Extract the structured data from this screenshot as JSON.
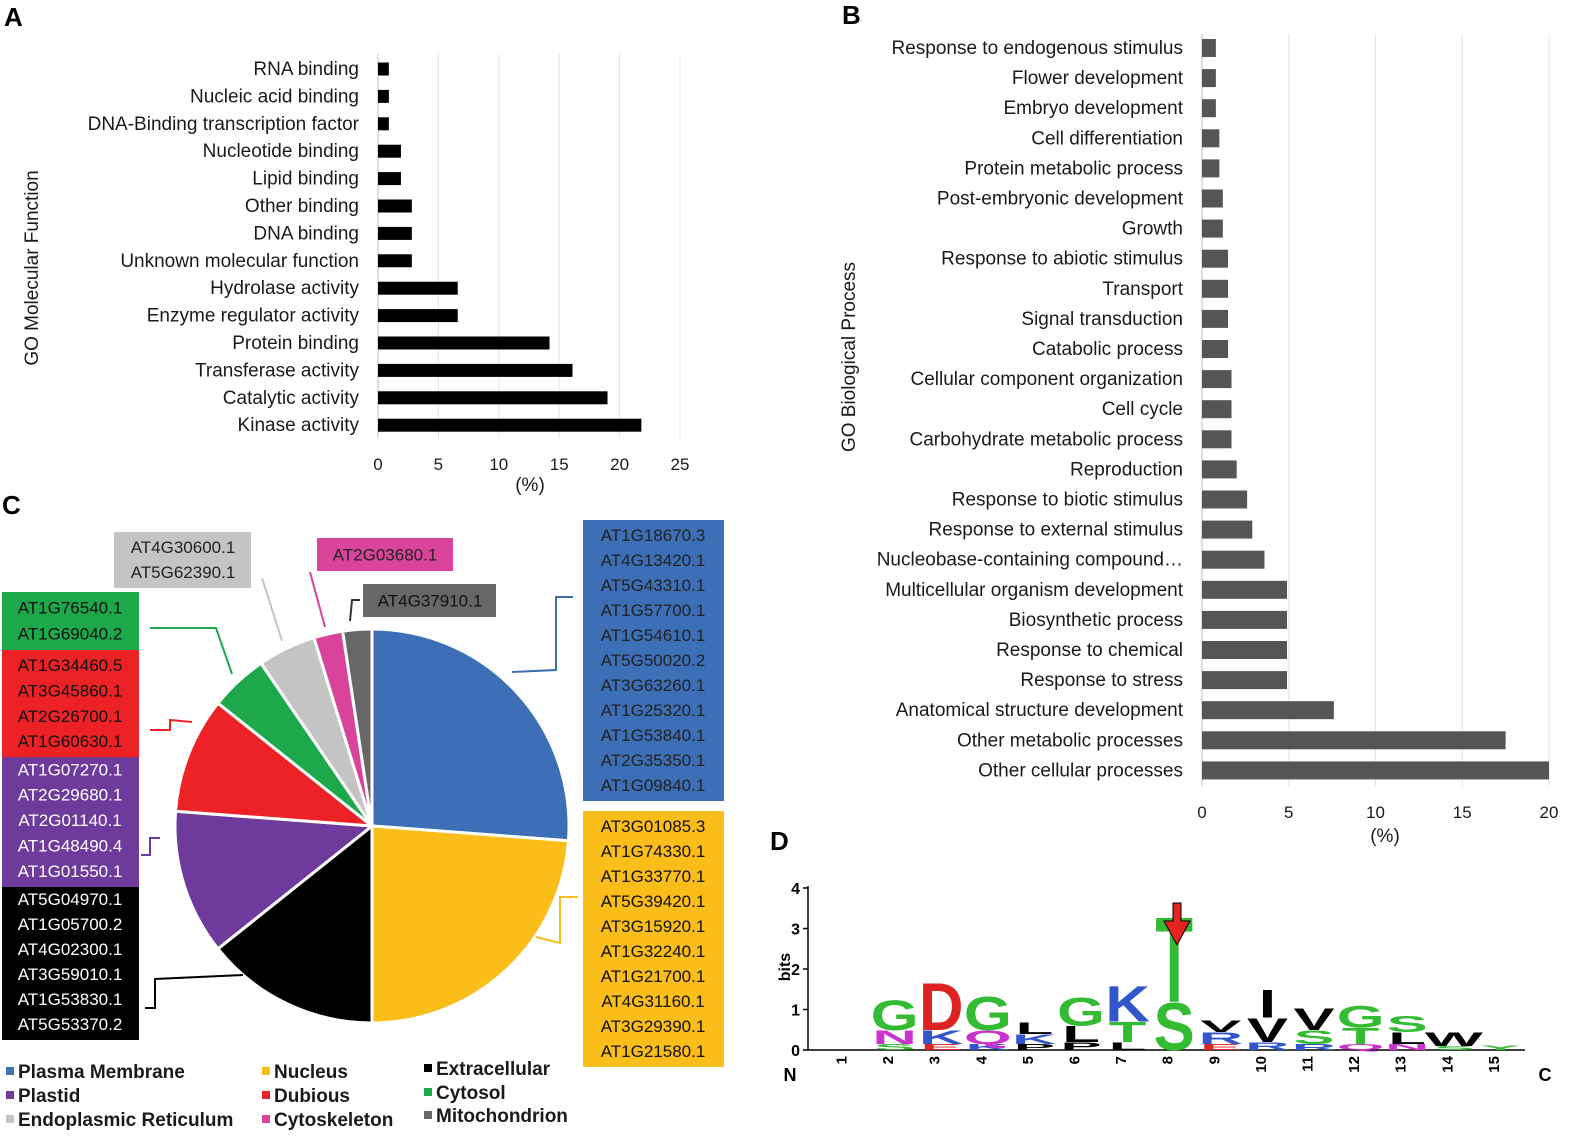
{
  "panels": {
    "a": "A",
    "b": "B",
    "c": "C",
    "d": "D"
  },
  "chart_data": [
    {
      "id": "A",
      "type": "bar",
      "orientation": "horizontal",
      "ylabel": "GO Molecular Function",
      "xlabel": "(%)",
      "xlim": [
        0,
        25
      ],
      "xticks": [
        0,
        5,
        10,
        15,
        20,
        25
      ],
      "bar_color": "#000000",
      "categories": [
        "RNA binding",
        "Nucleic acid binding",
        "DNA-Binding transcription factor",
        "Nucleotide binding",
        "Lipid binding",
        "Other binding",
        "DNA binding",
        "Unknown molecular function",
        "Hydrolase activity",
        "Enzyme regulator activity",
        "Protein binding",
        "Transferase activity",
        "Catalytic activity",
        "Kinase activity"
      ],
      "values": [
        0.9,
        0.9,
        0.9,
        1.9,
        1.9,
        2.8,
        2.8,
        2.8,
        6.6,
        6.6,
        14.2,
        16.1,
        19.0,
        21.8
      ]
    },
    {
      "id": "B",
      "type": "bar",
      "orientation": "horizontal",
      "ylabel": "GO Biological Process",
      "xlabel": "(%)",
      "xlim": [
        0,
        20
      ],
      "xticks": [
        0,
        5,
        10,
        15,
        20
      ],
      "bar_color": "#555555",
      "categories": [
        "Response to endogenous stimulus",
        "Flower development",
        "Embryo development",
        "Cell differentiation",
        "Protein metabolic process",
        "Post-embryonic development",
        "Growth",
        "Response to abiotic stimulus",
        "Transport",
        "Signal transduction",
        "Catabolic process",
        "Cellular component organization",
        "Cell cycle",
        "Carbohydrate metabolic process",
        "Reproduction",
        "Response to biotic stimulus",
        "Response to external stimulus",
        "Nucleobase-containing compound…",
        "Multicellular organism development",
        "Biosynthetic process",
        "Response to chemical",
        "Response to stress",
        "Anatomical structure development",
        "Other metabolic processes",
        "Other cellular processes"
      ],
      "values": [
        0.8,
        0.8,
        0.8,
        1.0,
        1.0,
        1.2,
        1.2,
        1.5,
        1.5,
        1.5,
        1.5,
        1.7,
        1.7,
        1.7,
        2.0,
        2.6,
        2.9,
        3.6,
        4.9,
        4.9,
        4.9,
        4.9,
        7.6,
        17.5,
        20.0
      ]
    },
    {
      "id": "C",
      "type": "pie",
      "slices": [
        {
          "name": "Plasma Membrane",
          "value": 11,
          "color": "#3d6fb6",
          "ids": [
            "AT1G18670.3",
            "AT4G13420.1",
            "AT5G43310.1",
            "AT1G57700.1",
            "AT1G54610.1",
            "AT5G50020.2",
            "AT3G63260.1",
            "AT1G25320.1",
            "AT1G53840.1",
            "AT2G35350.1",
            "AT1G09840.1"
          ]
        },
        {
          "name": "Nucleus",
          "value": 10,
          "color": "#fbbd1a",
          "ids": [
            "AT3G01085.3",
            "AT1G74330.1",
            "AT1G33770.1",
            "AT5G39420.1",
            "AT3G15920.1",
            "AT1G32240.1",
            "AT1G21700.1",
            "AT4G31160.1",
            "AT3G29390.1",
            "AT1G21580.1"
          ]
        },
        {
          "name": "Extracellular",
          "value": 6,
          "color": "#000000",
          "ids": [
            "AT5G04970.1",
            "AT1G05700.2",
            "AT4G02300.1",
            "AT3G59010.1",
            "AT1G53830.1",
            "AT5G53370.2"
          ]
        },
        {
          "name": "Plastid",
          "value": 5,
          "color": "#6e3b9c",
          "ids": [
            "AT1G07270.1",
            "AT2G29680.1",
            "AT2G01140.1",
            "AT1G48490.4",
            "AT1G01550.1"
          ]
        },
        {
          "name": "Dubious",
          "value": 4,
          "color": "#ec2227",
          "ids": [
            "AT1G34460.5",
            "AT3G45860.1",
            "AT2G26700.1",
            "AT1G60630.1"
          ]
        },
        {
          "name": "Cytosol",
          "value": 2,
          "color": "#1ea84c",
          "ids": [
            "AT1G76540.1",
            "AT1G69040.2"
          ]
        },
        {
          "name": "Endoplasmic Reticulum",
          "value": 2,
          "color": "#c4c4c4",
          "ids": [
            "AT4G30600.1",
            "AT5G62390.1"
          ]
        },
        {
          "name": "Cytoskeleton",
          "value": 1,
          "color": "#d9449a",
          "ids": [
            "AT2G03680.1"
          ]
        },
        {
          "name": "Mitochondrion",
          "value": 1,
          "color": "#676767",
          "ids": [
            "AT4G37910.1"
          ]
        }
      ],
      "legend": [
        [
          "Plasma Membrane",
          "Nucleus",
          "Extracellular"
        ],
        [
          "Plastid",
          "Dubious",
          "Cytosol"
        ],
        [
          "Endoplasmic Reticulum",
          "Cytoskeleton",
          "Mitochondrion"
        ]
      ]
    },
    {
      "id": "D",
      "type": "sequence-logo",
      "ylabel": "bits",
      "ylim": [
        0,
        4
      ],
      "yticks": [
        0,
        1,
        2,
        3,
        4
      ],
      "positions": [
        "1",
        "2",
        "3",
        "4",
        "5",
        "6",
        "7",
        "8",
        "9",
        "10",
        "11",
        "12",
        "13",
        "14",
        "15"
      ],
      "n_label": "N",
      "c_label": "C",
      "highlight_position": 8,
      "stacks": [
        {
          "pos": 1,
          "letters": []
        },
        {
          "pos": 2,
          "letters": [
            {
              "l": "G",
              "bits": 0.75,
              "color": "#33bb33"
            },
            {
              "l": "N",
              "bits": 0.35,
              "color": "#cc33cc"
            },
            {
              "l": "S",
              "bits": 0.15,
              "color": "#33bb33"
            }
          ]
        },
        {
          "pos": 3,
          "letters": [
            {
              "l": "D",
              "bits": 1.2,
              "color": "#dd2222"
            },
            {
              "l": "K",
              "bits": 0.35,
              "color": "#3355cc"
            },
            {
              "l": "E",
              "bits": 0.15,
              "color": "#dd2222"
            }
          ]
        },
        {
          "pos": 4,
          "letters": [
            {
              "l": "G",
              "bits": 0.85,
              "color": "#33bb33"
            },
            {
              "l": "Q",
              "bits": 0.35,
              "color": "#cc33cc"
            },
            {
              "l": "K",
              "bits": 0.15,
              "color": "#3355cc"
            }
          ]
        },
        {
          "pos": 5,
          "letters": [
            {
              "l": "L",
              "bits": 0.3,
              "color": "#000000"
            },
            {
              "l": "K",
              "bits": 0.25,
              "color": "#3355cc"
            },
            {
              "l": "P",
              "bits": 0.15,
              "color": "#000000"
            }
          ]
        },
        {
          "pos": 6,
          "letters": [
            {
              "l": "G",
              "bits": 0.7,
              "color": "#33bb33"
            },
            {
              "l": "L",
              "bits": 0.4,
              "color": "#000000"
            },
            {
              "l": "P",
              "bits": 0.2,
              "color": "#000000"
            }
          ]
        },
        {
          "pos": 7,
          "letters": [
            {
              "l": "K",
              "bits": 0.9,
              "color": "#3355cc"
            },
            {
              "l": "T",
              "bits": 0.5,
              "color": "#33bb33"
            },
            {
              "l": "L",
              "bits": 0.2,
              "color": "#000000"
            }
          ]
        },
        {
          "pos": 8,
          "letters": [
            {
              "l": "T",
              "bits": 2.15,
              "color": "#33bb33"
            },
            {
              "l": "S",
              "bits": 1.2,
              "color": "#33bb33"
            }
          ]
        },
        {
          "pos": 9,
          "letters": [
            {
              "l": "R",
              "bits": 0.3,
              "color": "#3355cc"
            },
            {
              "l": "V",
              "bits": 0.3,
              "color": "#000000"
            },
            {
              "l": "E",
              "bits": 0.15,
              "color": "#dd2222"
            }
          ]
        },
        {
          "pos": 10,
          "letters": [
            {
              "l": "I",
              "bits": 0.7,
              "color": "#000000"
            },
            {
              "l": "V",
              "bits": 0.6,
              "color": "#000000"
            },
            {
              "l": "R",
              "bits": 0.2,
              "color": "#3355cc"
            }
          ]
        },
        {
          "pos": 11,
          "letters": [
            {
              "l": "V",
              "bits": 0.55,
              "color": "#000000"
            },
            {
              "l": "S",
              "bits": 0.35,
              "color": "#33bb33"
            },
            {
              "l": "R",
              "bits": 0.15,
              "color": "#3355cc"
            }
          ]
        },
        {
          "pos": 12,
          "letters": [
            {
              "l": "G",
              "bits": 0.55,
              "color": "#33bb33"
            },
            {
              "l": "T",
              "bits": 0.4,
              "color": "#33bb33"
            },
            {
              "l": "Q",
              "bits": 0.15,
              "color": "#cc33cc"
            }
          ]
        },
        {
          "pos": 13,
          "letters": [
            {
              "l": "L",
              "bits": 0.3,
              "color": "#000000"
            },
            {
              "l": "S",
              "bits": 0.4,
              "color": "#33bb33"
            },
            {
              "l": "N",
              "bits": 0.15,
              "color": "#cc33cc"
            }
          ]
        },
        {
          "pos": 14,
          "letters": [
            {
              "l": "W",
              "bits": 0.35,
              "color": "#000000"
            },
            {
              "l": "S",
              "bits": 0.1,
              "color": "#33bb33"
            }
          ]
        },
        {
          "pos": 15,
          "letters": [
            {
              "l": "Y",
              "bits": 0.12,
              "color": "#33bb33"
            }
          ]
        }
      ]
    }
  ]
}
